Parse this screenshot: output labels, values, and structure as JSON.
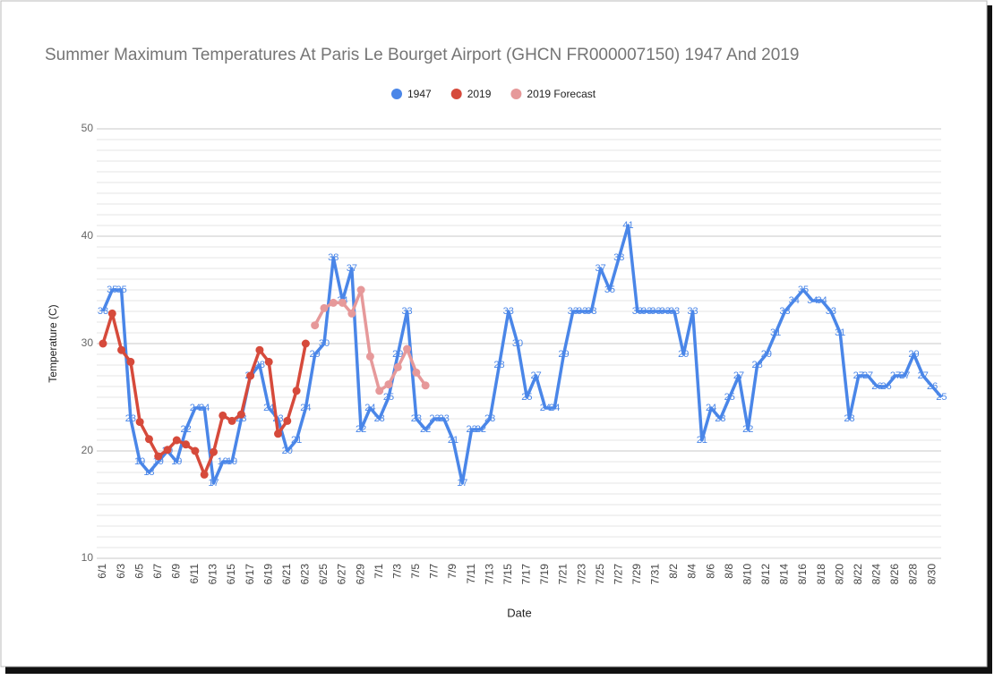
{
  "chart_data": {
    "type": "line",
    "title": "Summer Maximum Temperatures At Paris Le Bourget Airport (GHCN FR000007150) 1947 And 2019",
    "x_label": "Date",
    "y_label": "Temperature (C)",
    "ylim": [
      10,
      50
    ],
    "yticks": [
      10,
      20,
      30,
      40,
      50
    ],
    "minor_yticks": [
      11,
      12,
      13,
      14,
      15,
      16,
      17,
      18,
      19,
      21,
      22,
      23,
      24,
      25,
      26,
      27,
      28,
      29,
      31,
      32,
      33,
      34,
      35,
      36,
      37,
      38,
      39,
      41,
      42,
      43,
      44,
      45,
      46,
      47,
      48,
      49
    ],
    "grid": true,
    "legend": "top",
    "categories": [
      "6/1",
      null,
      "6/3",
      null,
      "6/5",
      null,
      "6/7",
      null,
      "6/9",
      null,
      "6/11",
      null,
      "6/13",
      null,
      "6/15",
      null,
      "6/17",
      null,
      "6/19",
      null,
      "6/21",
      null,
      "6/23",
      null,
      "6/25",
      null,
      "6/27",
      null,
      "6/29",
      null,
      "7/1",
      null,
      "7/3",
      null,
      "7/5",
      null,
      "7/7",
      null,
      "7/9",
      null,
      "7/11",
      null,
      "7/13",
      null,
      "7/15",
      null,
      "7/17",
      null,
      "7/19",
      null,
      "7/21",
      null,
      "7/23",
      null,
      "7/25",
      null,
      "7/27",
      null,
      "7/29",
      null,
      "7/31",
      null,
      "8/2",
      null,
      "8/4",
      null,
      "8/6",
      null,
      "8/8",
      null,
      "8/10",
      null,
      "8/12",
      null,
      "8/14",
      null,
      "8/16",
      null,
      "8/18",
      null,
      "8/20",
      null,
      "8/22",
      null,
      "8/24",
      null,
      "8/26",
      null,
      "8/28",
      null,
      "8/30",
      null
    ],
    "series": [
      {
        "name": "1947",
        "color": "#4a86e8",
        "markers": false,
        "data_labels": true,
        "values": [
          33,
          35,
          35,
          23,
          19,
          18,
          19,
          20,
          19,
          22,
          24,
          24,
          17,
          19,
          19,
          23,
          27,
          28,
          24,
          23,
          20,
          21,
          24,
          29,
          30,
          38,
          34,
          37,
          22,
          24,
          23,
          25,
          29,
          33,
          23,
          22,
          23,
          23,
          21,
          17,
          22,
          22,
          23,
          28,
          33,
          30,
          25,
          27,
          24,
          24,
          29,
          33,
          33,
          33,
          37,
          35,
          38,
          41,
          33,
          33,
          33,
          33,
          33,
          29,
          33,
          21,
          24,
          23,
          25,
          27,
          22,
          28,
          29,
          31,
          33,
          34,
          35,
          34,
          34,
          33,
          31,
          23,
          27,
          27,
          26,
          26,
          27,
          27,
          29,
          27,
          26,
          25
        ]
      },
      {
        "name": "2019",
        "color": "#d64a3b",
        "markers": true,
        "data_labels": false,
        "values": [
          30,
          32.8,
          29.4,
          28.3,
          22.7,
          21.1,
          19.5,
          20.1,
          21,
          20.6,
          20,
          17.8,
          19.9,
          23.3,
          22.8,
          23.4,
          27,
          29.4,
          28.3,
          21.6,
          22.8,
          25.6,
          30,
          null,
          null,
          null,
          null,
          null,
          null,
          null,
          null,
          null,
          null,
          null,
          null,
          null,
          null,
          null,
          null,
          null,
          null,
          null,
          null,
          null,
          null,
          null,
          null,
          null,
          null,
          null,
          null,
          null,
          null,
          null,
          null,
          null,
          null,
          null,
          null,
          null,
          null,
          null,
          null,
          null,
          null,
          null,
          null,
          null,
          null,
          null,
          null,
          null,
          null,
          null,
          null,
          null,
          null,
          null,
          null,
          null,
          null,
          null,
          null,
          null,
          null,
          null,
          null,
          null,
          null,
          null,
          null,
          null
        ]
      },
      {
        "name": "2019 Forecast",
        "color": "#e6999a",
        "markers": true,
        "data_labels": false,
        "values": [
          null,
          null,
          null,
          null,
          null,
          null,
          null,
          null,
          null,
          null,
          null,
          null,
          null,
          null,
          null,
          null,
          null,
          null,
          null,
          null,
          null,
          null,
          null,
          31.7,
          33.3,
          33.8,
          33.8,
          32.8,
          35,
          28.8,
          25.6,
          26.2,
          27.8,
          29.5,
          27.3,
          26.1,
          null,
          null,
          null,
          null,
          null,
          null,
          null,
          null,
          null,
          null,
          null,
          null,
          null,
          null,
          null,
          null,
          null,
          null,
          null,
          null,
          null,
          null,
          null,
          null,
          null,
          null,
          null,
          null,
          null,
          null,
          null,
          null,
          null,
          null,
          null,
          null,
          null,
          null,
          null,
          null,
          null,
          null,
          null,
          null,
          null,
          null,
          null,
          null,
          null,
          null,
          null,
          null,
          null,
          null,
          null,
          null
        ]
      }
    ]
  }
}
